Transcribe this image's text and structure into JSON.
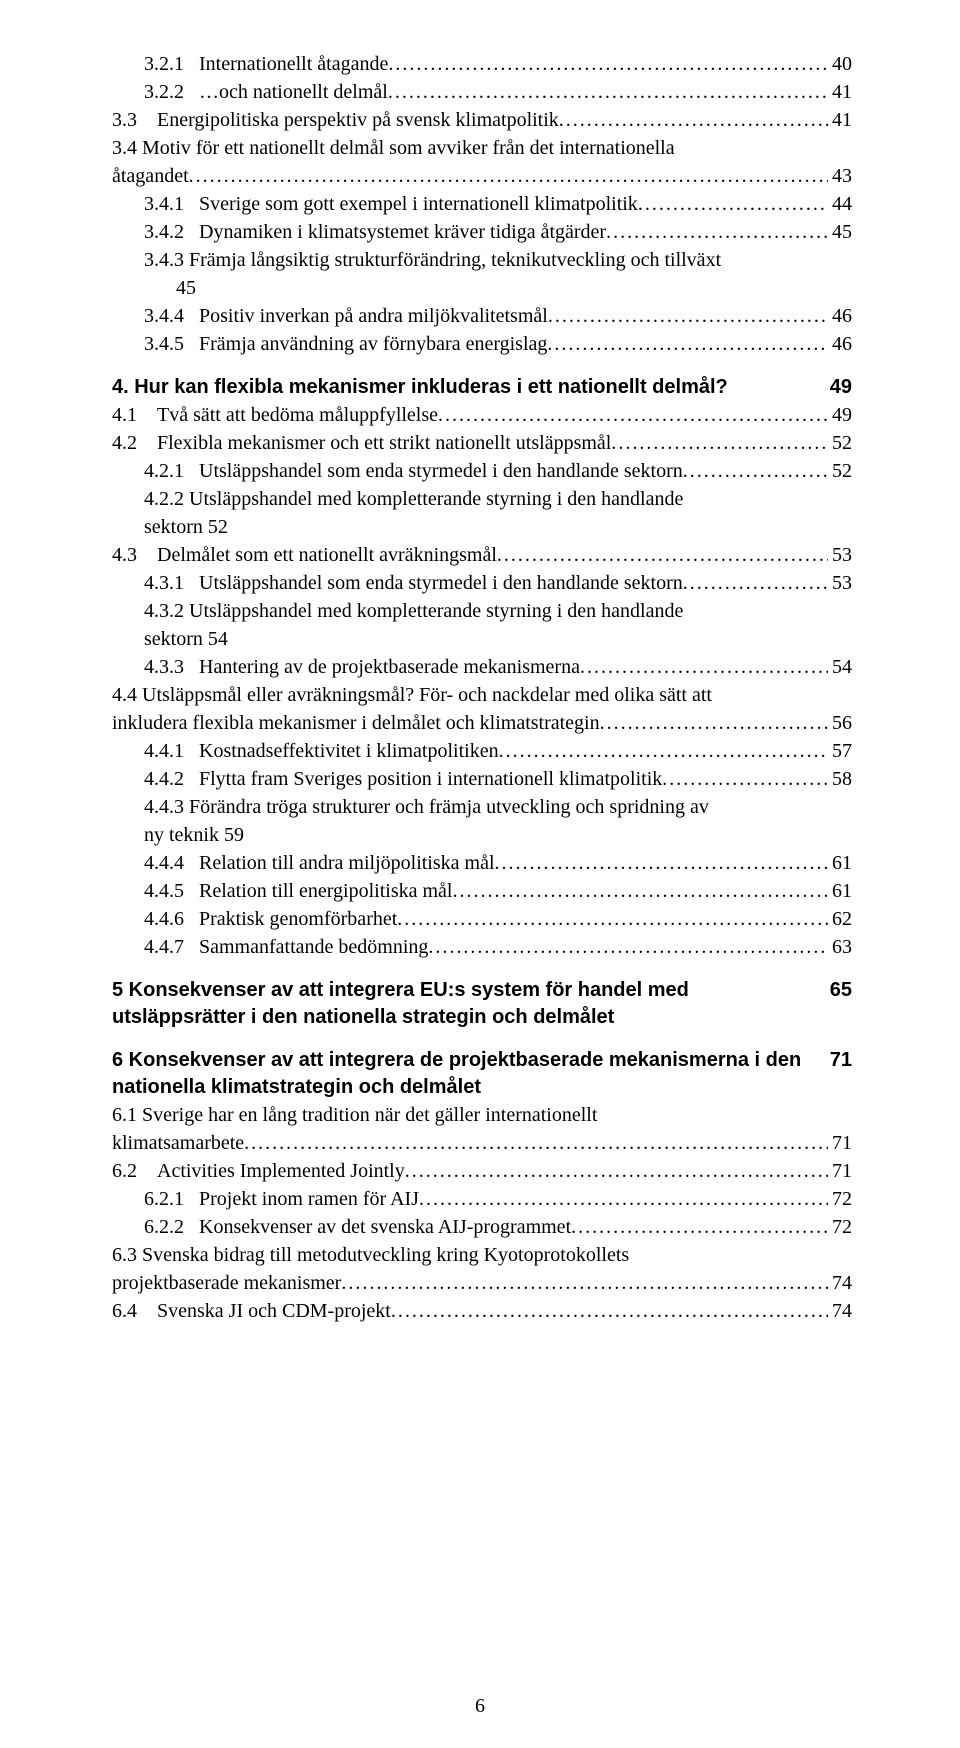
{
  "page_number": "6",
  "sections": [
    {
      "type": "toc",
      "indent": "indent-1",
      "pre": "3.2.1   ",
      "label": "Internationellt åtagande",
      "page": "40"
    },
    {
      "type": "toc",
      "indent": "indent-1",
      "pre": "3.2.2   ",
      "label": "…och nationellt delmål",
      "page": "41"
    },
    {
      "type": "toc",
      "indent": "indent-0",
      "pre": "3.3    ",
      "label": "Energipolitiska perspektiv på svensk klimatpolitik",
      "page": "41"
    },
    {
      "type": "wrap",
      "indent": "indent-0",
      "pre": "3.4    ",
      "label_line1": "Motiv för ett nationellt delmål som avviker från det internationella",
      "cont_indent": "cont-1b",
      "label_line2": "åtagandet",
      "page": "43"
    },
    {
      "type": "toc",
      "indent": "indent-1",
      "pre": "3.4.1   ",
      "label": "Sverige som gott exempel i internationell klimatpolitik",
      "page": "44"
    },
    {
      "type": "toc",
      "indent": "indent-1",
      "pre": "3.4.2   ",
      "label": "Dynamiken i klimatsystemet kräver tidiga åtgärder",
      "page": "45"
    },
    {
      "type": "wrap",
      "indent": "indent-1",
      "pre": "3.4.3   ",
      "label_line1": "Främja långsiktig strukturförändring, teknikutveckling och tillväxt",
      "cont_indent": "cont-2",
      "label_line2": "45",
      "page": null
    },
    {
      "type": "toc",
      "indent": "indent-1",
      "pre": "3.4.4   ",
      "label": "Positiv inverkan på andra miljökvalitetsmål",
      "page": "46"
    },
    {
      "type": "toc",
      "indent": "indent-1",
      "pre": "3.4.5   ",
      "label": "Främja användning av förnybara energislag",
      "page": "46"
    },
    {
      "type": "spacer"
    },
    {
      "type": "bold",
      "label": "4.   Hur kan flexibla mekanismer inkluderas i ett nationellt delmål?",
      "page": "49"
    },
    {
      "type": "toc",
      "indent": "indent-0",
      "pre": "4.1    ",
      "label": "Två sätt att bedöma måluppfyllelse",
      "page": "49"
    },
    {
      "type": "toc",
      "indent": "indent-0",
      "pre": "4.2    ",
      "label": "Flexibla mekanismer och ett strikt nationellt utsläppsmål",
      "page": "52"
    },
    {
      "type": "toc",
      "indent": "indent-1",
      "pre": "4.2.1   ",
      "label": "Utsläppshandel som enda styrmedel i den handlande sektorn",
      "page": "52"
    },
    {
      "type": "wrap",
      "indent": "indent-1",
      "pre": "4.2.2   ",
      "label_line1": "Utsläppshandel med kompletterande styrning i den handlande",
      "cont_indent": "cont-1",
      "label_line2": "sektorn   52",
      "page": null
    },
    {
      "type": "toc",
      "indent": "indent-0",
      "pre": "4.3    ",
      "label": "Delmålet som ett nationellt avräkningsmål",
      "page": "53"
    },
    {
      "type": "toc",
      "indent": "indent-1",
      "pre": "4.3.1   ",
      "label": "Utsläppshandel som enda styrmedel i den handlande sektorn",
      "page": "53"
    },
    {
      "type": "wrap",
      "indent": "indent-1",
      "pre": "4.3.2   ",
      "label_line1": "Utsläppshandel med kompletterande styrning i den handlande",
      "cont_indent": "cont-1",
      "label_line2": "sektorn   54",
      "page": null
    },
    {
      "type": "toc",
      "indent": "indent-1",
      "pre": "4.3.3   ",
      "label": "Hantering av de projektbaserade mekanismerna",
      "page": "54"
    },
    {
      "type": "wrap",
      "indent": "indent-0",
      "pre": "4.4    ",
      "label_line1": "Utsläppsmål eller avräkningsmål? För- och nackdelar med olika sätt att",
      "cont_indent": "cont-1b",
      "label_line2": "inkludera flexibla mekanismer i delmålet och klimatstrategin",
      "page": "56"
    },
    {
      "type": "toc",
      "indent": "indent-1",
      "pre": "4.4.1   ",
      "label": "Kostnadseffektivitet i klimatpolitiken",
      "page": "57"
    },
    {
      "type": "toc",
      "indent": "indent-1",
      "pre": "4.4.2   ",
      "label": "Flytta fram Sveriges position i internationell klimatpolitik",
      "page": "58"
    },
    {
      "type": "wrap",
      "indent": "indent-1",
      "pre": "4.4.3   ",
      "label_line1": "Förändra tröga strukturer och främja utveckling och spridning av",
      "cont_indent": "cont-1",
      "label_line2": "ny teknik 59",
      "page": null
    },
    {
      "type": "toc",
      "indent": "indent-1",
      "pre": "4.4.4   ",
      "label": "Relation till andra miljöpolitiska mål",
      "page": "61"
    },
    {
      "type": "toc",
      "indent": "indent-1",
      "pre": "4.4.5   ",
      "label": "Relation till energipolitiska mål",
      "page": "61"
    },
    {
      "type": "toc",
      "indent": "indent-1",
      "pre": "4.4.6   ",
      "label": "Praktisk genomförbarhet",
      "page": "62"
    },
    {
      "type": "toc",
      "indent": "indent-1",
      "pre": "4.4.7   ",
      "label": "Sammanfattande bedömning",
      "page": "63"
    },
    {
      "type": "spacer"
    },
    {
      "type": "bold",
      "label": "5    Konsekvenser av att integrera EU:s system för handel med utsläppsrätter i den nationella strategin och delmålet",
      "page": "65"
    },
    {
      "type": "spacer"
    },
    {
      "type": "bold",
      "label": "6    Konsekvenser av att integrera de projektbaserade mekanismerna i den nationella klimatstrategin och delmålet",
      "page": "71"
    },
    {
      "type": "wrap",
      "indent": "indent-0",
      "pre": "6.1    ",
      "label_line1": "Sverige har en lång tradition när det gäller internationellt",
      "cont_indent": "cont-1b",
      "label_line2": "klimatsamarbete",
      "page": "71"
    },
    {
      "type": "toc",
      "indent": "indent-0",
      "pre": "6.2    ",
      "label": "Activities Implemented Jointly",
      "page": "71"
    },
    {
      "type": "toc",
      "indent": "indent-1",
      "pre": "6.2.1   ",
      "label": "Projekt inom ramen för AIJ",
      "page": "72"
    },
    {
      "type": "toc",
      "indent": "indent-1",
      "pre": "6.2.2   ",
      "label": "Konsekvenser av det svenska AIJ-programmet",
      "page": "72"
    },
    {
      "type": "wrap",
      "indent": "indent-0",
      "pre": "6.3    ",
      "label_line1": "Svenska bidrag till metodutveckling kring Kyotoprotokollets",
      "cont_indent": "cont-1b",
      "label_line2": "projektbaserade mekanismer",
      "page": "74"
    },
    {
      "type": "toc",
      "indent": "indent-0",
      "pre": "6.4    ",
      "label": "Svenska JI och CDM-projekt",
      "page": "74"
    }
  ]
}
